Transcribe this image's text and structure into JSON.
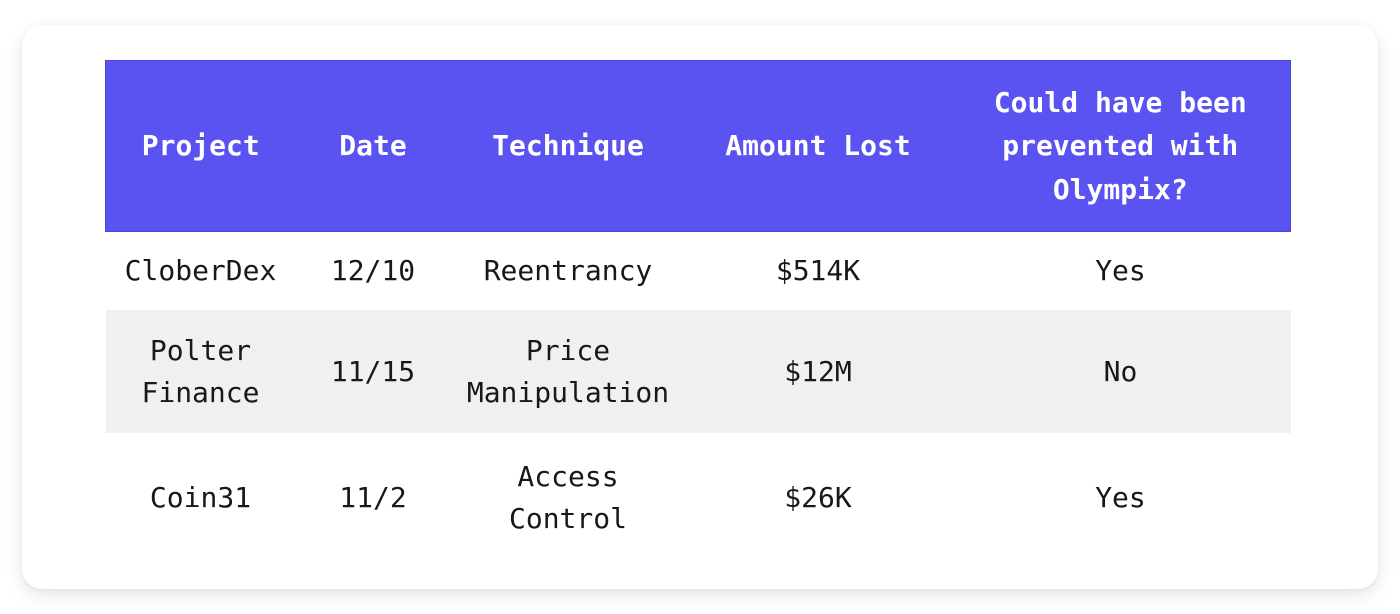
{
  "colors": {
    "header_bg": "#5a52f1",
    "header_border": "#4c44d4",
    "header_text": "#ffffff",
    "body_text": "#17171c",
    "alt_row_bg": "#f0f0f0",
    "card_bg": "#ffffff"
  },
  "table": {
    "columns": [
      {
        "label": "Project"
      },
      {
        "label": "Date"
      },
      {
        "label": "Technique"
      },
      {
        "label": "Amount Lost"
      },
      {
        "label": "Could have been prevented with Olympix?"
      }
    ],
    "rows": [
      [
        "CloberDex",
        "12/10",
        "Reentrancy",
        "$514K",
        "Yes"
      ],
      [
        "Polter Finance",
        "11/15",
        "Price Manipulation",
        "$12M",
        "No"
      ],
      [
        "Coin31",
        "11/2",
        "Access Control",
        "$26K",
        "Yes"
      ]
    ]
  }
}
